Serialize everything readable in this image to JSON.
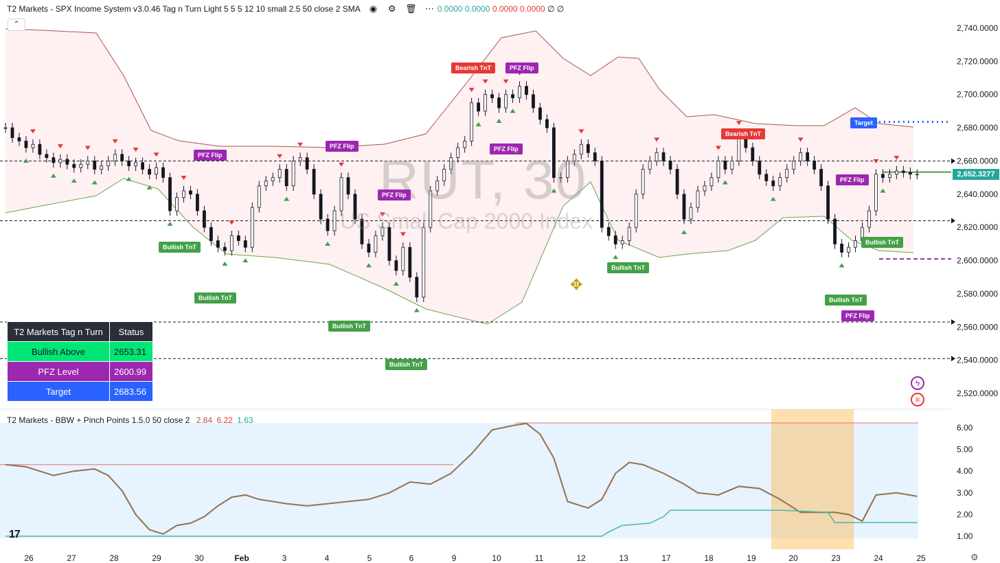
{
  "header": {
    "indicator_title": "T2 Markets - SPX Income System v3.0.46 Tag n Turn Light 5 5 5 12 10 small 2.5 50 close 2 SMA",
    "values": [
      "0.0000",
      "0.0000",
      "0.0000",
      "0.0000"
    ],
    "tail": "∅ ∅",
    "icons": [
      "eye-icon",
      "gear-icon",
      "trash-icon",
      "more-icon"
    ]
  },
  "watermark": {
    "symbol": "RUT, 30",
    "description": "US Small Cap 2000 Index"
  },
  "colors": {
    "bull": "#43a047",
    "bear": "#e53935",
    "pfz": "#9c27b0",
    "target": "#2962ff",
    "price": "#26a69a",
    "band_line": "#a9564f",
    "bbw": "#a9564f",
    "pinch": "#4caf50"
  },
  "price_axis": {
    "ticks": [
      "2,740.0000",
      "2,720.0000",
      "2,700.0000",
      "2,680.0000",
      "2,660.0000",
      "2,640.0000",
      "2,620.0000",
      "2,600.0000",
      "2,580.0000",
      "2,560.0000",
      "2,540.0000",
      "2,520.0000"
    ],
    "current": "2,652.3277"
  },
  "time_axis": {
    "ticks": [
      "26",
      "27",
      "28",
      "29",
      "30",
      "Feb",
      "3",
      "4",
      "5",
      "6",
      "9",
      "10",
      "11",
      "12",
      "13",
      "17",
      "18",
      "19",
      "20",
      "23",
      "24",
      "25"
    ]
  },
  "tags": [
    {
      "label": "Bullish TnT",
      "kind": "bull"
    },
    {
      "label": "Bullish TnT",
      "kind": "bull"
    },
    {
      "label": "Bullish TnT",
      "kind": "bull"
    },
    {
      "label": "Bullish TnT",
      "kind": "bull"
    },
    {
      "label": "Bullish TnT",
      "kind": "bull"
    },
    {
      "label": "Bullish TnT",
      "kind": "bull"
    },
    {
      "label": "Bullish TnT",
      "kind": "bull"
    },
    {
      "label": "Bearish TnT",
      "kind": "bear"
    },
    {
      "label": "Bearish TnT",
      "kind": "bear"
    },
    {
      "label": "PFZ Flip",
      "kind": "pfz"
    },
    {
      "label": "PFZ Flip",
      "kind": "pfz"
    },
    {
      "label": "PFZ Flip",
      "kind": "pfz"
    },
    {
      "label": "PFZ Flip",
      "kind": "pfz"
    },
    {
      "label": "PFZ Flip",
      "kind": "pfz"
    },
    {
      "label": "PFZ Flip",
      "kind": "pfz"
    },
    {
      "label": "PFZ Flip",
      "kind": "pfz"
    },
    {
      "label": "Target",
      "kind": "tgt"
    }
  ],
  "status_table": {
    "header": [
      "T2 Markets Tag n Turn",
      "Status"
    ],
    "rows": [
      {
        "label": "Bullish Above",
        "value": "2653.31",
        "color": "#00e676",
        "text": "#131722"
      },
      {
        "label": "PFZ Level",
        "value": "2600.99",
        "color": "#9c27b0",
        "text": "#ffffff"
      },
      {
        "label": "Target",
        "value": "2683.56",
        "color": "#2962ff",
        "text": "#ffffff"
      }
    ]
  },
  "bbw_indicator": {
    "title": "T2 Markets - BBW + Pinch Points 1.5.0 50 close 2",
    "values": [
      "2.84",
      "6.22",
      "1.63"
    ],
    "value_colors": [
      "#a9564f",
      "#e53935",
      "#26a69a"
    ],
    "axis_ticks": [
      "6.00",
      "5.00",
      "4.00",
      "3.00",
      "2.00",
      "1.00"
    ]
  },
  "chart_data": [
    {
      "type": "line",
      "xlabel": "",
      "ylabel": "",
      "ylim": [
        2510,
        2750
      ],
      "dashed_levels": [
        2660,
        2624,
        2563,
        2541
      ],
      "target_level": 2683.56,
      "pfz_level": 2600.99,
      "bullish_above": 2653.31,
      "last_price": 2652.3277,
      "series": [
        {
          "x": [
            0,
            10,
            20,
            30,
            40,
            50,
            60,
            70,
            80,
            90,
            100,
            110,
            120,
            130,
            140,
            150,
            160,
            170,
            180,
            190,
            200,
            210,
            220,
            230,
            240,
            250,
            260,
            270,
            280,
            290,
            300,
            310,
            320,
            330,
            340,
            350,
            360,
            370,
            380,
            390,
            400,
            410,
            420,
            430,
            440,
            450,
            460,
            470,
            480,
            490,
            500,
            510,
            520,
            530,
            540,
            550,
            560,
            570,
            580,
            590,
            600,
            610,
            620,
            630,
            640,
            650,
            660,
            670,
            680,
            690,
            700,
            710,
            720,
            730,
            740,
            750,
            760,
            770,
            780,
            790,
            800,
            810,
            820,
            830,
            840,
            850,
            860,
            870,
            880,
            890,
            900,
            910,
            920,
            930,
            940,
            950,
            960,
            970,
            980,
            990,
            1000,
            1010,
            1020,
            1030,
            1040,
            1050,
            1060,
            1070,
            1080,
            1090,
            1100,
            1110,
            1120,
            1130,
            1140,
            1150,
            1160,
            1170,
            1180,
            1190,
            1200,
            1210,
            1220,
            1230,
            1240,
            1250,
            1260,
            1270,
            1280,
            1290,
            1300,
            1310,
            1320,
            1330
          ],
          "values": [
            2680,
            2674,
            2672,
            2668,
            2670,
            2664,
            2662,
            2659,
            2661,
            2658,
            2656,
            2658,
            2660,
            2655,
            2657,
            2660,
            2664,
            2660,
            2657,
            2659,
            2655,
            2652,
            2656,
            2650,
            2630,
            2638,
            2642,
            2640,
            2630,
            2620,
            2612,
            2608,
            2606,
            2615,
            2612,
            2608,
            2632,
            2645,
            2648,
            2650,
            2655,
            2645,
            2660,
            2662,
            2655,
            2640,
            2625,
            2618,
            2630,
            2650,
            2640,
            2625,
            2610,
            2605,
            2615,
            2620,
            2600,
            2594,
            2608,
            2590,
            2578,
            2620,
            2642,
            2648,
            2655,
            2662,
            2668,
            2672,
            2695,
            2690,
            2700,
            2698,
            2692,
            2700,
            2698,
            2705,
            2700,
            2692,
            2685,
            2680,
            2650,
            2650,
            2660,
            2664,
            2670,
            2665,
            2660,
            2620,
            2615,
            2610,
            2612,
            2620,
            2640,
            2655,
            2660,
            2665,
            2660,
            2655,
            2640,
            2625,
            2632,
            2642,
            2645,
            2650,
            2660,
            2655,
            2660,
            2675,
            2668,
            2660,
            2652,
            2648,
            2645,
            2650,
            2655,
            2660,
            2665,
            2660,
            2655,
            2645,
            2625,
            2610,
            2605,
            2608,
            2612,
            2620,
            2630,
            2652,
            2650,
            2652,
            2654,
            2653,
            2652,
            2652
          ],
          "name": ""
        }
      ]
    },
    {
      "type": "line",
      "xlabel": "",
      "ylabel": "",
      "ylim": [
        0.6,
        6.6
      ],
      "series": [
        {
          "x": [
            0,
            30,
            70,
            100,
            130,
            150,
            170,
            190,
            210,
            230,
            250,
            270,
            290,
            310,
            330,
            350,
            370,
            390,
            410,
            440,
            470,
            500,
            530,
            560,
            590,
            620,
            650,
            680,
            710,
            740,
            760,
            780,
            800,
            820,
            850,
            870,
            890,
            910,
            930,
            960,
            990,
            1010,
            1040,
            1070,
            1100,
            1130,
            1160,
            1190,
            1210,
            1230,
            1250,
            1270,
            1300,
            1330
          ],
          "values": [
            4.3,
            4.2,
            3.8,
            4.0,
            4.1,
            3.8,
            3.1,
            2.0,
            1.3,
            1.1,
            1.5,
            1.6,
            1.9,
            2.4,
            2.8,
            2.9,
            2.7,
            2.6,
            2.5,
            2.4,
            2.5,
            2.6,
            2.7,
            3.0,
            3.5,
            3.4,
            3.9,
            4.8,
            5.9,
            6.1,
            6.2,
            5.7,
            4.6,
            2.6,
            2.3,
            2.7,
            3.9,
            4.4,
            4.3,
            3.9,
            3.4,
            3.0,
            2.9,
            3.3,
            3.2,
            2.7,
            2.1,
            2.1,
            2.1,
            2.0,
            1.7,
            2.9,
            3.0,
            2.84
          ],
          "name": ""
        },
        {
          "x": [
            0,
            870,
            880,
            900,
            940,
            960,
            970,
            1100,
            1130,
            1200,
            1210,
            1330
          ],
          "values": [
            1.0,
            1.0,
            1.2,
            1.5,
            1.6,
            1.9,
            2.2,
            2.2,
            2.2,
            2.1,
            1.63,
            1.63
          ],
          "name": ""
        }
      ],
      "reference_lines": [
        4.3,
        6.22
      ]
    }
  ]
}
